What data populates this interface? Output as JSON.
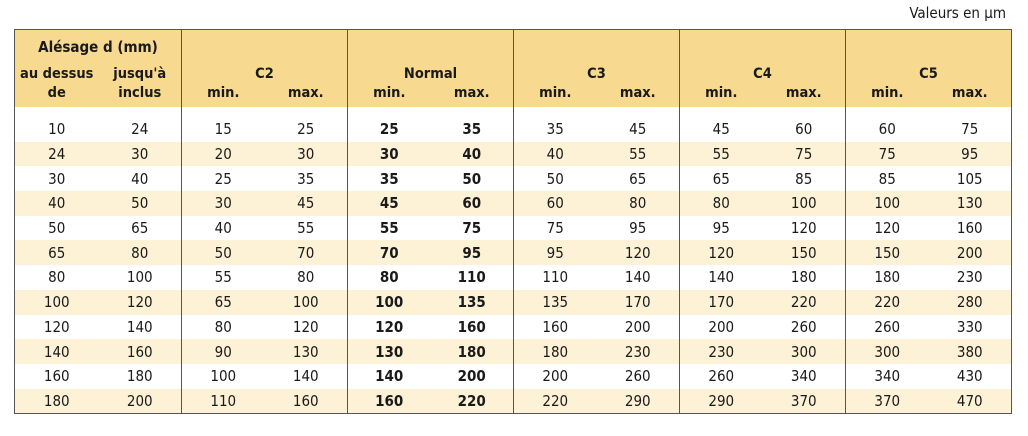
{
  "units_note": "Valeurs en µm",
  "header": {
    "bore_title": "Alésage d (mm)",
    "from_label": "au dessus",
    "from_label2": "de",
    "to_label": "jusqu'à",
    "to_label2": "inclus",
    "groups": [
      "C2",
      "Normal",
      "C3",
      "C4",
      "C5"
    ],
    "min_label": "min.",
    "max_label": "max."
  },
  "rows": [
    [
      "10",
      "24",
      "15",
      "25",
      "25",
      "35",
      "35",
      "45",
      "45",
      "60",
      "60",
      "75"
    ],
    [
      "24",
      "30",
      "20",
      "30",
      "30",
      "40",
      "40",
      "55",
      "55",
      "75",
      "75",
      "95"
    ],
    [
      "30",
      "40",
      "25",
      "35",
      "35",
      "50",
      "50",
      "65",
      "65",
      "85",
      "85",
      "105"
    ],
    [
      "40",
      "50",
      "30",
      "45",
      "45",
      "60",
      "60",
      "80",
      "80",
      "100",
      "100",
      "130"
    ],
    [
      "50",
      "65",
      "40",
      "55",
      "55",
      "75",
      "75",
      "95",
      "95",
      "120",
      "120",
      "160"
    ],
    [
      "65",
      "80",
      "50",
      "70",
      "70",
      "95",
      "95",
      "120",
      "120",
      "150",
      "150",
      "200"
    ],
    [
      "80",
      "100",
      "55",
      "80",
      "80",
      "110",
      "110",
      "140",
      "140",
      "180",
      "180",
      "230"
    ],
    [
      "100",
      "120",
      "65",
      "100",
      "100",
      "135",
      "135",
      "170",
      "170",
      "220",
      "220",
      "280"
    ],
    [
      "120",
      "140",
      "80",
      "120",
      "120",
      "160",
      "160",
      "200",
      "200",
      "260",
      "260",
      "330"
    ],
    [
      "140",
      "160",
      "90",
      "130",
      "130",
      "180",
      "180",
      "230",
      "230",
      "300",
      "300",
      "380"
    ],
    [
      "160",
      "180",
      "100",
      "140",
      "140",
      "200",
      "200",
      "260",
      "260",
      "340",
      "340",
      "430"
    ],
    [
      "180",
      "200",
      "110",
      "160",
      "160",
      "220",
      "220",
      "290",
      "290",
      "370",
      "370",
      "470"
    ]
  ]
}
